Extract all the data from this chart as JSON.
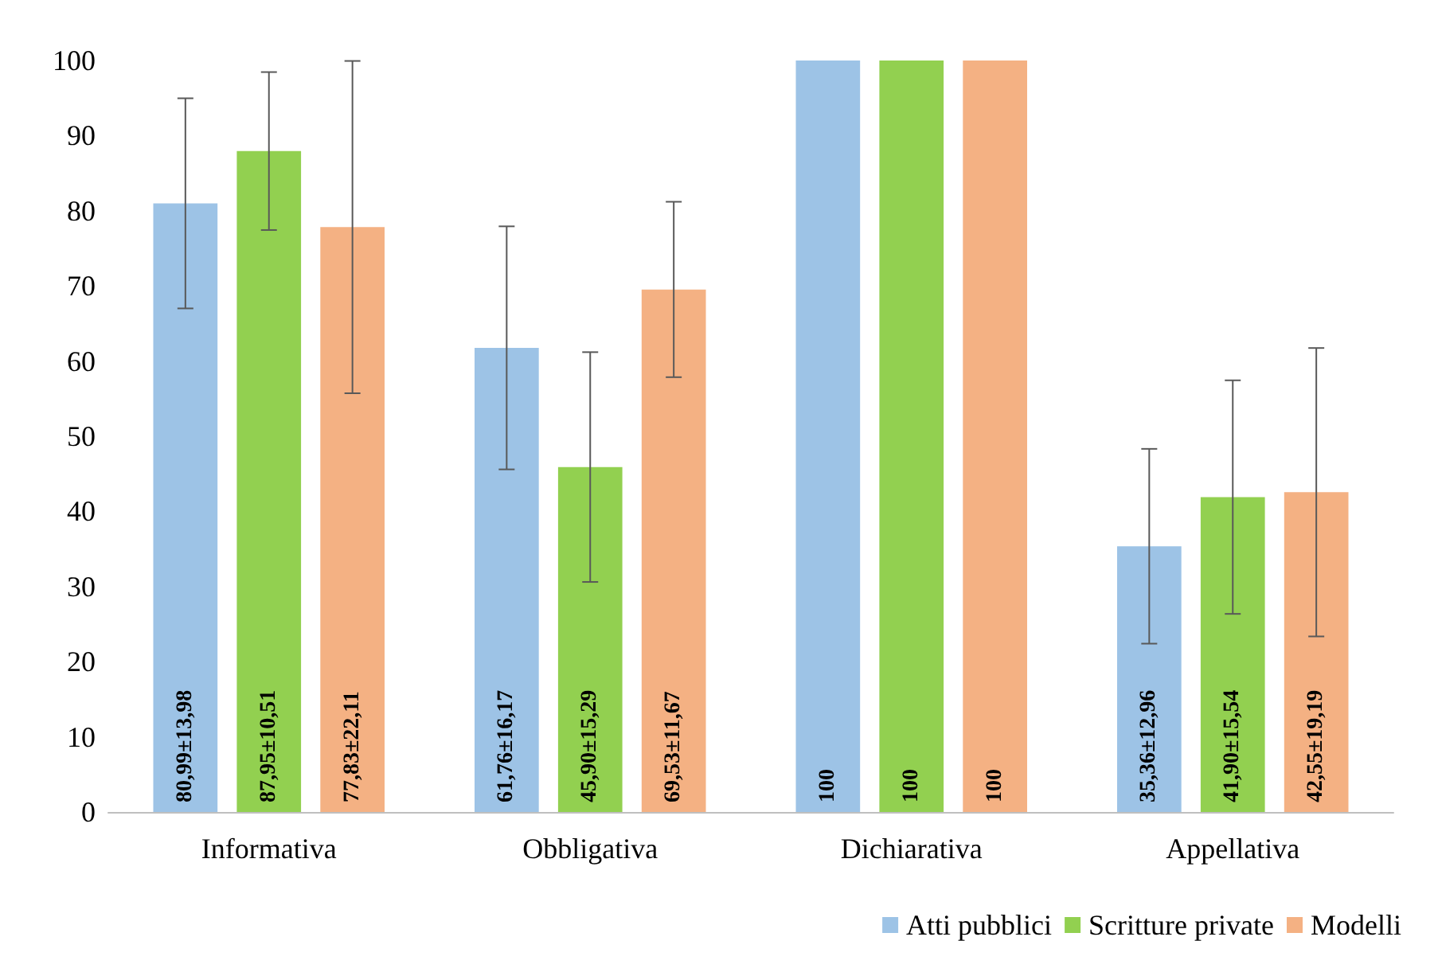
{
  "chart_data": {
    "type": "bar",
    "categories": [
      "Informativa",
      "Obbligativa",
      "Dichiarativa",
      "Appellativa"
    ],
    "series": [
      {
        "name": "Atti pubblici",
        "color": "#9dc3e6",
        "values": [
          80.99,
          61.76,
          100,
          35.36
        ],
        "errors": [
          13.98,
          16.17,
          null,
          12.96
        ],
        "value_labels": [
          "80,99±13,98",
          "61,76±16,17",
          "100",
          "35,36±12,96"
        ]
      },
      {
        "name": "Scritture private",
        "color": "#92d050",
        "values": [
          87.95,
          45.9,
          100,
          41.9
        ],
        "errors": [
          10.51,
          15.29,
          null,
          15.54
        ],
        "value_labels": [
          "87,95±10,51",
          "45,90±15,29",
          "100",
          "41,90±15,54"
        ]
      },
      {
        "name": "Modelli",
        "color": "#f4b183",
        "values": [
          77.83,
          69.53,
          100,
          42.55
        ],
        "errors": [
          22.11,
          11.67,
          null,
          19.19
        ],
        "value_labels": [
          "77,83±22,11",
          "69,53±11,67",
          "100",
          "42,55±19,19"
        ]
      }
    ],
    "ylim": [
      0,
      100
    ],
    "yticks": [
      0,
      10,
      20,
      30,
      40,
      50,
      60,
      70,
      80,
      90,
      100
    ],
    "grid": false,
    "legend": "bottom right"
  }
}
